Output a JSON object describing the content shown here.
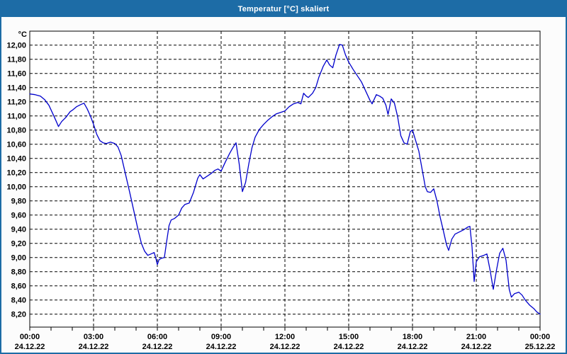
{
  "window": {
    "title": "Temperatur [°C] skaliert",
    "title_bar_color": "#1d6ca6",
    "border_color": "#1d6ca6"
  },
  "chart_data": {
    "type": "line",
    "title": "Temperatur [°C] skaliert",
    "ylabel": "°C",
    "ylim": [
      8.0,
      12.2
    ],
    "y_ticks": {
      "min": 8.2,
      "max": 12.0,
      "step": 0.2,
      "decimal_separator": ",",
      "labels": [
        "12,00",
        "11,80",
        "11,60",
        "11,40",
        "11,20",
        "11,00",
        "10,80",
        "10,60",
        "10,40",
        "10,20",
        "10,00",
        "9,80",
        "9,60",
        "9,40",
        "9,20",
        "9,00",
        "8,80",
        "8,60",
        "8,40",
        "8,20"
      ]
    },
    "x_axis": {
      "range_hours": [
        0,
        24
      ],
      "minor_tick_every_hours": 1,
      "gridline_every_hours": 3,
      "labels": [
        {
          "hour": 0,
          "time": "00:00",
          "date": "24.12.22"
        },
        {
          "hour": 3,
          "time": "03:00",
          "date": "24.12.22"
        },
        {
          "hour": 6,
          "time": "06:00",
          "date": "24.12.22"
        },
        {
          "hour": 9,
          "time": "09:00",
          "date": "24.12.22"
        },
        {
          "hour": 12,
          "time": "12:00",
          "date": "24.12.22"
        },
        {
          "hour": 15,
          "time": "15:00",
          "date": "24.12.22"
        },
        {
          "hour": 18,
          "time": "18:00",
          "date": "24.12.22"
        },
        {
          "hour": 21,
          "time": "21:00",
          "date": "24.12.22"
        },
        {
          "hour": 24,
          "time": "00:00",
          "date": "25.12.22"
        }
      ]
    },
    "grid": true,
    "legend": "none",
    "line_color": "#0000cc",
    "series": [
      {
        "name": "Temperatur",
        "unit": "°C",
        "points": [
          [
            0,
            11.31
          ],
          [
            0.25,
            11.3
          ],
          [
            0.5,
            11.28
          ],
          [
            0.7,
            11.23
          ],
          [
            0.9,
            11.15
          ],
          [
            1.1,
            11.02
          ],
          [
            1.25,
            10.92
          ],
          [
            1.35,
            10.85
          ],
          [
            1.5,
            10.92
          ],
          [
            1.7,
            10.98
          ],
          [
            1.9,
            11.06
          ],
          [
            2.0,
            11.08
          ],
          [
            2.2,
            11.13
          ],
          [
            2.4,
            11.16
          ],
          [
            2.55,
            11.18
          ],
          [
            2.7,
            11.1
          ],
          [
            2.85,
            11.0
          ],
          [
            3.0,
            10.88
          ],
          [
            3.15,
            10.74
          ],
          [
            3.3,
            10.65
          ],
          [
            3.45,
            10.62
          ],
          [
            3.6,
            10.61
          ],
          [
            3.8,
            10.63
          ],
          [
            4.0,
            10.61
          ],
          [
            4.15,
            10.56
          ],
          [
            4.3,
            10.44
          ],
          [
            4.5,
            10.18
          ],
          [
            4.7,
            9.92
          ],
          [
            4.9,
            9.65
          ],
          [
            5.1,
            9.38
          ],
          [
            5.25,
            9.2
          ],
          [
            5.4,
            9.09
          ],
          [
            5.55,
            9.03
          ],
          [
            5.7,
            9.05
          ],
          [
            5.85,
            9.07
          ],
          [
            5.93,
            8.99
          ],
          [
            6.0,
            8.9
          ],
          [
            6.08,
            8.97
          ],
          [
            6.2,
            8.99
          ],
          [
            6.33,
            9.0
          ],
          [
            6.45,
            9.25
          ],
          [
            6.55,
            9.45
          ],
          [
            6.65,
            9.53
          ],
          [
            6.8,
            9.55
          ],
          [
            7.0,
            9.6
          ],
          [
            7.15,
            9.7
          ],
          [
            7.3,
            9.75
          ],
          [
            7.5,
            9.77
          ],
          [
            7.7,
            9.92
          ],
          [
            7.9,
            10.12
          ],
          [
            8.0,
            10.17
          ],
          [
            8.15,
            10.11
          ],
          [
            8.3,
            10.14
          ],
          [
            8.5,
            10.18
          ],
          [
            8.7,
            10.23
          ],
          [
            8.85,
            10.25
          ],
          [
            9.0,
            10.22
          ],
          [
            9.2,
            10.35
          ],
          [
            9.4,
            10.47
          ],
          [
            9.55,
            10.55
          ],
          [
            9.7,
            10.62
          ],
          [
            9.85,
            10.32
          ],
          [
            10.0,
            9.93
          ],
          [
            10.15,
            10.06
          ],
          [
            10.3,
            10.32
          ],
          [
            10.45,
            10.55
          ],
          [
            10.6,
            10.7
          ],
          [
            10.8,
            10.81
          ],
          [
            11.0,
            10.88
          ],
          [
            11.2,
            10.94
          ],
          [
            11.4,
            10.99
          ],
          [
            11.6,
            11.03
          ],
          [
            11.8,
            11.05
          ],
          [
            12.0,
            11.07
          ],
          [
            12.2,
            11.13
          ],
          [
            12.4,
            11.17
          ],
          [
            12.6,
            11.19
          ],
          [
            12.75,
            11.17
          ],
          [
            12.88,
            11.32
          ],
          [
            13.0,
            11.28
          ],
          [
            13.1,
            11.26
          ],
          [
            13.3,
            11.32
          ],
          [
            13.45,
            11.4
          ],
          [
            13.6,
            11.55
          ],
          [
            13.8,
            11.7
          ],
          [
            13.97,
            11.79
          ],
          [
            14.1,
            11.72
          ],
          [
            14.25,
            11.68
          ],
          [
            14.4,
            11.86
          ],
          [
            14.57,
            12.01
          ],
          [
            14.7,
            12.0
          ],
          [
            14.85,
            11.86
          ],
          [
            15.0,
            11.76
          ],
          [
            15.2,
            11.66
          ],
          [
            15.4,
            11.57
          ],
          [
            15.6,
            11.48
          ],
          [
            15.8,
            11.35
          ],
          [
            16.0,
            11.22
          ],
          [
            16.1,
            11.17
          ],
          [
            16.3,
            11.3
          ],
          [
            16.45,
            11.28
          ],
          [
            16.6,
            11.25
          ],
          [
            16.75,
            11.15
          ],
          [
            16.85,
            11.02
          ],
          [
            17.0,
            11.24
          ],
          [
            17.15,
            11.18
          ],
          [
            17.3,
            10.99
          ],
          [
            17.45,
            10.72
          ],
          [
            17.6,
            10.62
          ],
          [
            17.75,
            10.6
          ],
          [
            17.9,
            10.78
          ],
          [
            18.0,
            10.8
          ],
          [
            18.15,
            10.65
          ],
          [
            18.3,
            10.5
          ],
          [
            18.45,
            10.25
          ],
          [
            18.6,
            10.0
          ],
          [
            18.7,
            9.93
          ],
          [
            18.85,
            9.92
          ],
          [
            19.0,
            9.97
          ],
          [
            19.15,
            9.8
          ],
          [
            19.3,
            9.57
          ],
          [
            19.45,
            9.38
          ],
          [
            19.6,
            9.18
          ],
          [
            19.7,
            9.1
          ],
          [
            19.85,
            9.26
          ],
          [
            20.0,
            9.33
          ],
          [
            20.2,
            9.36
          ],
          [
            20.4,
            9.39
          ],
          [
            20.6,
            9.43
          ],
          [
            20.7,
            9.44
          ],
          [
            20.8,
            9.15
          ],
          [
            20.9,
            8.66
          ],
          [
            21.0,
            8.94
          ],
          [
            21.15,
            9.01
          ],
          [
            21.35,
            9.03
          ],
          [
            21.5,
            9.05
          ],
          [
            21.65,
            8.82
          ],
          [
            21.8,
            8.55
          ],
          [
            21.95,
            8.82
          ],
          [
            22.1,
            9.06
          ],
          [
            22.25,
            9.13
          ],
          [
            22.4,
            8.96
          ],
          [
            22.55,
            8.55
          ],
          [
            22.65,
            8.44
          ],
          [
            22.8,
            8.49
          ],
          [
            23.0,
            8.51
          ],
          [
            23.15,
            8.47
          ],
          [
            23.3,
            8.4
          ],
          [
            23.5,
            8.33
          ],
          [
            23.7,
            8.28
          ],
          [
            23.85,
            8.23
          ],
          [
            24.0,
            8.2
          ]
        ]
      }
    ]
  }
}
